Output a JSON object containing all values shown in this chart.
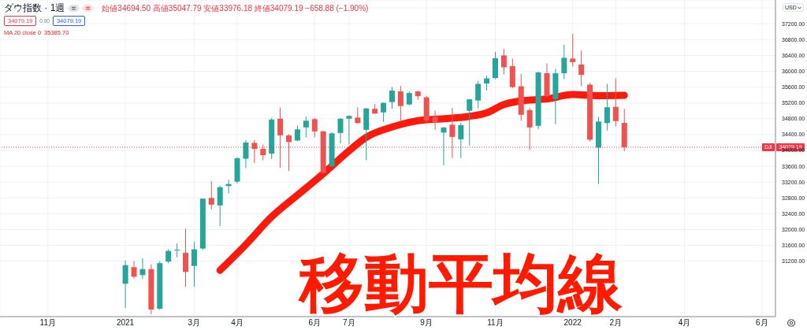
{
  "chart_data": {
    "type": "candlestick",
    "title": "ダウ指数 · 1週",
    "subtitle": "始値34694.50 高値35047.79 安値33976.18 終値34079.19 −658.88 (−1.90%)",
    "annotations": [
      "34079.19",
      "0.00",
      "34079.19",
      "USD",
      "移動平均線",
      "35385.70"
    ],
    "x": [
      "2021-01-04",
      "2021-01-11",
      "2021-01-18",
      "2021-01-25",
      "2021-02-01",
      "2021-02-08",
      "2021-02-15",
      "2021-02-22",
      "2021-03-01",
      "2021-03-08",
      "2021-03-15",
      "2021-03-22",
      "2021-03-29",
      "2021-04-05",
      "2021-04-12",
      "2021-04-19",
      "2021-04-26",
      "2021-05-03",
      "2021-05-10",
      "2021-05-17",
      "2021-05-24",
      "2021-05-31",
      "2021-06-07",
      "2021-06-14",
      "2021-06-21",
      "2021-06-28",
      "2021-07-05",
      "2021-07-12",
      "2021-07-19",
      "2021-07-26",
      "2021-08-02",
      "2021-08-09",
      "2021-08-16",
      "2021-08-23",
      "2021-08-30",
      "2021-09-06",
      "2021-09-13",
      "2021-09-20",
      "2021-09-27",
      "2021-10-04",
      "2021-10-11",
      "2021-10-18",
      "2021-10-25",
      "2021-11-01",
      "2021-11-08",
      "2021-11-15",
      "2021-11-22",
      "2021-11-29",
      "2021-12-06",
      "2021-12-13",
      "2021-12-20",
      "2021-12-27",
      "2022-01-03",
      "2022-01-10",
      "2022-01-17",
      "2022-01-24",
      "2022-01-31",
      "2022-02-07",
      "2022-02-14"
    ],
    "ohlc": [
      [
        30630,
        31220,
        30020,
        31100
      ],
      [
        31050,
        31200,
        30760,
        30810
      ],
      [
        30850,
        31270,
        30750,
        31000
      ],
      [
        31000,
        31120,
        29860,
        29980
      ],
      [
        30000,
        31200,
        29970,
        31150
      ],
      [
        31190,
        31500,
        31150,
        31460
      ],
      [
        31480,
        31650,
        31300,
        31490
      ],
      [
        31410,
        32020,
        30550,
        30930
      ],
      [
        31080,
        31690,
        30550,
        31500
      ],
      [
        31520,
        32790,
        31480,
        32780
      ],
      [
        32800,
        33220,
        32510,
        32630
      ],
      [
        32610,
        33110,
        32090,
        33070
      ],
      [
        33100,
        33260,
        32910,
        33150
      ],
      [
        33210,
        33830,
        33170,
        33800
      ],
      [
        33790,
        34260,
        33550,
        34200
      ],
      [
        34190,
        34260,
        33680,
        34040
      ],
      [
        34040,
        34150,
        33750,
        33880
      ],
      [
        33920,
        34820,
        33780,
        34780
      ],
      [
        34800,
        35080,
        33560,
        34380
      ],
      [
        34380,
        34410,
        33480,
        34210
      ],
      [
        34250,
        34630,
        34230,
        34530
      ],
      [
        34580,
        34850,
        34330,
        34750
      ],
      [
        34790,
        34820,
        34330,
        34480
      ],
      [
        34480,
        34500,
        33400,
        33430
      ],
      [
        33600,
        34460,
        33580,
        34430
      ],
      [
        34440,
        34820,
        34180,
        34800
      ],
      [
        34800,
        34890,
        34150,
        34870
      ],
      [
        34830,
        35090,
        34680,
        34690
      ],
      [
        34520,
        35070,
        33750,
        35060
      ],
      [
        35050,
        35170,
        34920,
        34930
      ],
      [
        34960,
        35210,
        34720,
        35200
      ],
      [
        35220,
        35600,
        35050,
        35510
      ],
      [
        35490,
        35630,
        34750,
        35120
      ],
      [
        35160,
        35490,
        35140,
        35450
      ],
      [
        35490,
        35510,
        35280,
        35370
      ],
      [
        35340,
        35380,
        34700,
        34750
      ],
      [
        34850,
        35000,
        34520,
        34700
      ],
      [
        34450,
        34590,
        33620,
        34580
      ],
      [
        34650,
        35070,
        33810,
        34340
      ],
      [
        34280,
        34700,
        33810,
        34640
      ],
      [
        35000,
        35300,
        34120,
        35290
      ],
      [
        35260,
        35750,
        35060,
        35680
      ],
      [
        35690,
        35890,
        35510,
        35820
      ],
      [
        35830,
        36490,
        35800,
        36330
      ],
      [
        36400,
        36560,
        35920,
        36100
      ],
      [
        36130,
        36320,
        35570,
        35600
      ],
      [
        35620,
        35930,
        34750,
        34900
      ],
      [
        35020,
        35070,
        34010,
        34580
      ],
      [
        34620,
        35990,
        34540,
        35970
      ],
      [
        35950,
        36200,
        35330,
        35370
      ],
      [
        35300,
        36060,
        34660,
        35950
      ],
      [
        35950,
        36670,
        35800,
        36340
      ],
      [
        36320,
        36950,
        36120,
        36230
      ],
      [
        36170,
        36520,
        35630,
        35910
      ],
      [
        35660,
        35700,
        34220,
        34270
      ],
      [
        34070,
        34850,
        33150,
        34730
      ],
      [
        34690,
        35680,
        34500,
        35090
      ],
      [
        35100,
        35820,
        34610,
        34740
      ],
      [
        34694.5,
        35047.79,
        33976.18,
        34079.19
      ]
    ],
    "colors": [
      "#26a69a",
      "#ef5350",
      "#26a69a",
      "#ef5350",
      "#26a69a",
      "#26a69a",
      "#26a69a",
      "#ef5350",
      "#26a69a",
      "#26a69a",
      "#ef5350",
      "#26a69a",
      "#26a69a",
      "#26a69a",
      "#26a69a",
      "#ef5350",
      "#ef5350",
      "#26a69a",
      "#ef5350",
      "#ef5350",
      "#26a69a",
      "#26a69a",
      "#ef5350",
      "#ef5350",
      "#26a69a",
      "#26a69a",
      "#26a69a",
      "#ef5350",
      "#26a69a",
      "#ef5350",
      "#26a69a",
      "#26a69a",
      "#ef5350",
      "#26a69a",
      "#ef5350",
      "#ef5350",
      "#ef5350",
      "#26a69a",
      "#ef5350",
      "#26a69a",
      "#26a69a",
      "#26a69a",
      "#26a69a",
      "#26a69a",
      "#ef5350",
      "#ef5350",
      "#ef5350",
      "#ef5350",
      "#26a69a",
      "#ef5350",
      "#26a69a",
      "#26a69a",
      "#ef5350",
      "#ef5350",
      "#ef5350",
      "#26a69a",
      "#26a69a",
      "#ef5350",
      "#ef5350"
    ],
    "series": [
      {
        "name": "MA 20 close 0",
        "type": "line",
        "color": "#fb1a0b",
        "x": [
          "2021-03-22",
          "2021-04-12",
          "2021-05-03",
          "2021-05-24",
          "2021-06-14",
          "2021-07-05",
          "2021-07-19",
          "2021-08-09",
          "2021-08-30",
          "2021-09-20",
          "2021-10-11",
          "2021-10-25",
          "2021-11-08",
          "2021-11-22",
          "2021-12-13",
          "2022-01-03",
          "2022-01-24",
          "2022-02-14"
        ],
        "values": [
          30970,
          31620,
          32320,
          32870,
          33410,
          33990,
          34330,
          34590,
          34750,
          34800,
          34860,
          34950,
          35160,
          35250,
          35300,
          35410,
          35380,
          35390
        ]
      }
    ],
    "xlim": [
      "2020-09-24",
      "2022-06-17"
    ],
    "xticks": [
      {
        "value": "2020-11-02",
        "label": "11月"
      },
      {
        "value": "2021-01-04",
        "label": "2021"
      },
      {
        "value": "2021-03-01",
        "label": "3月"
      },
      {
        "value": "2021-04-05",
        "label": "4月"
      },
      {
        "value": "2021-06-07",
        "label": "6月"
      },
      {
        "value": "2021-07-05",
        "label": "7月"
      },
      {
        "value": "2021-09-06",
        "label": "9月"
      },
      {
        "value": "2021-11-01",
        "label": "11月"
      },
      {
        "value": "2022-01-03",
        "label": "2022"
      },
      {
        "value": "2022-02-07",
        "label": "2月"
      },
      {
        "value": "2022-04-04",
        "label": "4月"
      },
      {
        "value": "2022-06-06",
        "label": "6月"
      }
    ],
    "ylim": [
      29800,
      37800
    ],
    "yticks": [
      {
        "value": 31200,
        "label": "31200.00"
      },
      {
        "value": 31600,
        "label": "31600.00"
      },
      {
        "value": 32000,
        "label": "32000.00"
      },
      {
        "value": 32400,
        "label": "32400.00"
      },
      {
        "value": 32800,
        "label": "32800.00"
      },
      {
        "value": 33200,
        "label": "33200.00"
      },
      {
        "value": 33600,
        "label": "33600.00"
      },
      {
        "value": 34000,
        "label": "34000.00"
      },
      {
        "value": 34400,
        "label": "34400.00"
      },
      {
        "value": 34800,
        "label": "34800.00"
      },
      {
        "value": 35200,
        "label": "35200.00"
      },
      {
        "value": 35600,
        "label": "35600.00"
      },
      {
        "value": 36000,
        "label": "36000.00"
      },
      {
        "value": 36400,
        "label": "36400.00"
      },
      {
        "value": 36800,
        "label": "36800.00"
      },
      {
        "value": 37200,
        "label": "37200.00"
      },
      {
        "value": 37600,
        "label": null
      }
    ],
    "grid": true,
    "legend": "top left",
    "ref_lines": [
      {
        "axis": "y",
        "value": 34079.19,
        "label": "DJI",
        "color": "#f23645",
        "line_style": "dotted"
      }
    ]
  }
}
